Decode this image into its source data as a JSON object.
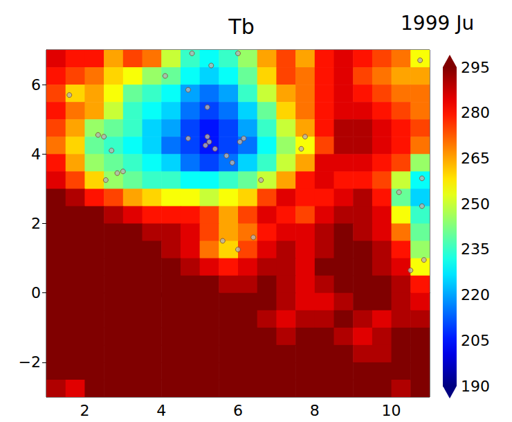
{
  "chart_data": {
    "type": "heatmap",
    "title": "Tb",
    "subtitle": "1999 Ju",
    "xlim": [
      1,
      11
    ],
    "ylim": [
      -3,
      7
    ],
    "xticks": [
      2,
      4,
      6,
      8,
      10
    ],
    "yticks": [
      {
        "value": -2,
        "label": "−2"
      },
      0,
      2,
      4,
      6
    ],
    "x": [
      1.25,
      1.75,
      2.25,
      2.75,
      3.25,
      3.75,
      4.25,
      4.75,
      5.25,
      5.75,
      6.25,
      6.75,
      7.25,
      7.75,
      8.25,
      8.75,
      9.25,
      9.75,
      10.25,
      10.75
    ],
    "y": [
      6.75,
      6.25,
      5.75,
      5.25,
      4.75,
      4.25,
      3.75,
      3.25,
      2.75,
      2.25,
      1.75,
      1.25,
      0.75,
      0.25,
      -0.25,
      -0.75,
      -1.25,
      -1.75,
      -2.25,
      -2.75
    ],
    "values": [
      [
        285,
        280,
        280,
        265,
        275,
        270,
        250,
        235,
        230,
        235,
        245,
        265,
        275,
        265,
        280,
        285,
        280,
        275,
        270,
        255
      ],
      [
        280,
        275,
        270,
        260,
        255,
        245,
        240,
        230,
        225,
        230,
        240,
        260,
        275,
        270,
        280,
        285,
        275,
        270,
        265,
        265
      ],
      [
        275,
        260,
        265,
        255,
        240,
        235,
        230,
        220,
        215,
        220,
        235,
        250,
        265,
        270,
        280,
        285,
        280,
        275,
        270,
        270
      ],
      [
        280,
        270,
        265,
        250,
        235,
        230,
        225,
        215,
        210,
        215,
        225,
        240,
        260,
        270,
        280,
        285,
        285,
        280,
        275,
        270
      ],
      [
        275,
        265,
        245,
        240,
        235,
        225,
        220,
        210,
        205,
        210,
        220,
        235,
        250,
        265,
        280,
        290,
        290,
        285,
        280,
        275
      ],
      [
        270,
        260,
        240,
        235,
        230,
        225,
        215,
        210,
        205,
        210,
        215,
        230,
        245,
        255,
        275,
        290,
        290,
        285,
        280,
        270
      ],
      [
        280,
        265,
        245,
        240,
        235,
        230,
        225,
        215,
        210,
        215,
        225,
        235,
        250,
        265,
        285,
        285,
        285,
        280,
        275,
        245
      ],
      [
        285,
        275,
        260,
        245,
        240,
        235,
        235,
        230,
        230,
        235,
        240,
        250,
        265,
        280,
        285,
        280,
        280,
        275,
        250,
        230
      ],
      [
        295,
        290,
        280,
        275,
        265,
        260,
        255,
        255,
        250,
        255,
        260,
        275,
        285,
        280,
        280,
        285,
        290,
        280,
        240,
        225
      ],
      [
        295,
        295,
        295,
        290,
        285,
        280,
        280,
        280,
        275,
        265,
        275,
        285,
        280,
        275,
        285,
        290,
        290,
        285,
        255,
        235
      ],
      [
        295,
        295,
        295,
        295,
        295,
        290,
        290,
        285,
        275,
        265,
        270,
        280,
        285,
        285,
        290,
        295,
        290,
        285,
        270,
        240
      ],
      [
        295,
        295,
        295,
        295,
        295,
        295,
        290,
        285,
        270,
        260,
        275,
        285,
        290,
        285,
        290,
        295,
        295,
        290,
        280,
        245
      ],
      [
        295,
        295,
        295,
        295,
        295,
        295,
        295,
        290,
        285,
        280,
        285,
        290,
        290,
        285,
        295,
        295,
        295,
        290,
        285,
        255
      ],
      [
        295,
        295,
        295,
        295,
        295,
        295,
        295,
        295,
        295,
        290,
        290,
        295,
        290,
        285,
        290,
        295,
        295,
        295,
        290,
        280
      ],
      [
        295,
        295,
        295,
        295,
        295,
        295,
        295,
        295,
        295,
        295,
        295,
        295,
        290,
        285,
        285,
        290,
        295,
        295,
        290,
        285
      ],
      [
        295,
        295,
        295,
        295,
        295,
        295,
        295,
        295,
        295,
        295,
        295,
        290,
        285,
        290,
        290,
        295,
        290,
        285,
        290,
        290
      ],
      [
        295,
        295,
        295,
        295,
        295,
        295,
        295,
        295,
        295,
        295,
        295,
        295,
        290,
        295,
        295,
        290,
        285,
        290,
        295,
        295
      ],
      [
        295,
        295,
        295,
        295,
        295,
        295,
        295,
        295,
        295,
        295,
        295,
        295,
        295,
        295,
        295,
        295,
        290,
        290,
        295,
        295
      ],
      [
        295,
        295,
        295,
        295,
        295,
        295,
        295,
        295,
        295,
        295,
        295,
        295,
        295,
        295,
        295,
        295,
        295,
        295,
        295,
        295
      ],
      [
        290,
        285,
        295,
        295,
        295,
        295,
        295,
        295,
        295,
        295,
        295,
        295,
        295,
        295,
        295,
        295,
        295,
        295,
        290,
        295
      ]
    ],
    "colorbar": {
      "range": [
        190,
        295
      ],
      "ticks": [
        190,
        205,
        220,
        235,
        250,
        265,
        280,
        295
      ]
    },
    "points": {
      "marker": "circle",
      "color": "#b4b4b4",
      "x": [
        1.6,
        2.35,
        2.5,
        2.7,
        2.55,
        2.85,
        3.0,
        4.1,
        4.7,
        4.8,
        5.2,
        5.3,
        6.0,
        4.7,
        5.2,
        5.15,
        5.25,
        5.4,
        5.7,
        5.85,
        6.05,
        6.15,
        6.6,
        7.65,
        7.75,
        5.6,
        6.0,
        6.4,
        10.2,
        10.8,
        10.8,
        10.85,
        10.5,
        10.75
      ],
      "y": [
        5.7,
        4.55,
        4.5,
        4.1,
        3.25,
        3.45,
        3.5,
        6.25,
        5.85,
        6.9,
        5.35,
        6.55,
        6.9,
        4.45,
        4.5,
        4.25,
        4.35,
        4.15,
        3.95,
        3.75,
        4.35,
        4.45,
        3.25,
        4.15,
        4.5,
        1.5,
        1.25,
        1.6,
        2.9,
        3.3,
        2.5,
        0.95,
        0.65,
        6.7
      ]
    }
  }
}
